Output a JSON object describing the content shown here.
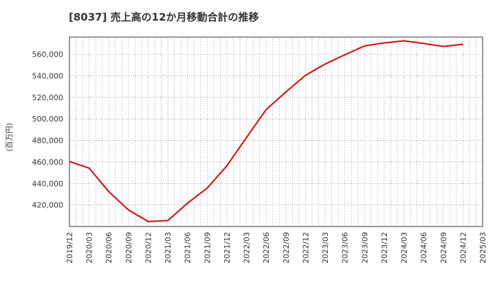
{
  "chart_data": {
    "type": "line",
    "title": "[8037]  売上高の12か月移動合計の推移",
    "ylabel": "(百万円)",
    "xlabel": "",
    "ylim": [
      400000,
      576000
    ],
    "yticks": [
      420000,
      440000,
      460000,
      480000,
      500000,
      520000,
      540000,
      560000
    ],
    "ytick_labels": [
      "420,000",
      "440,000",
      "460,000",
      "480,000",
      "500,000",
      "520,000",
      "540,000",
      "560,000"
    ],
    "xtick_labels": [
      "2019/12",
      "2020/03",
      "2020/06",
      "2020/09",
      "2020/12",
      "2021/03",
      "2021/06",
      "2021/09",
      "2021/12",
      "2022/03",
      "2022/06",
      "2022/09",
      "2022/12",
      "2023/03",
      "2023/06",
      "2023/09",
      "2023/12",
      "2024/03",
      "2024/06",
      "2024/09",
      "2024/12",
      "2025/03"
    ],
    "grid": true,
    "series": [
      {
        "name": "売上高の12か月移動合計",
        "color": "#e00000",
        "values": [
          460400,
          454200,
          432400,
          415300,
          404600,
          405500,
          421700,
          435700,
          456400,
          482800,
          508700,
          525000,
          540500,
          551000,
          559600,
          567800,
          570600,
          572500,
          570000,
          567300,
          569300
        ]
      }
    ]
  }
}
